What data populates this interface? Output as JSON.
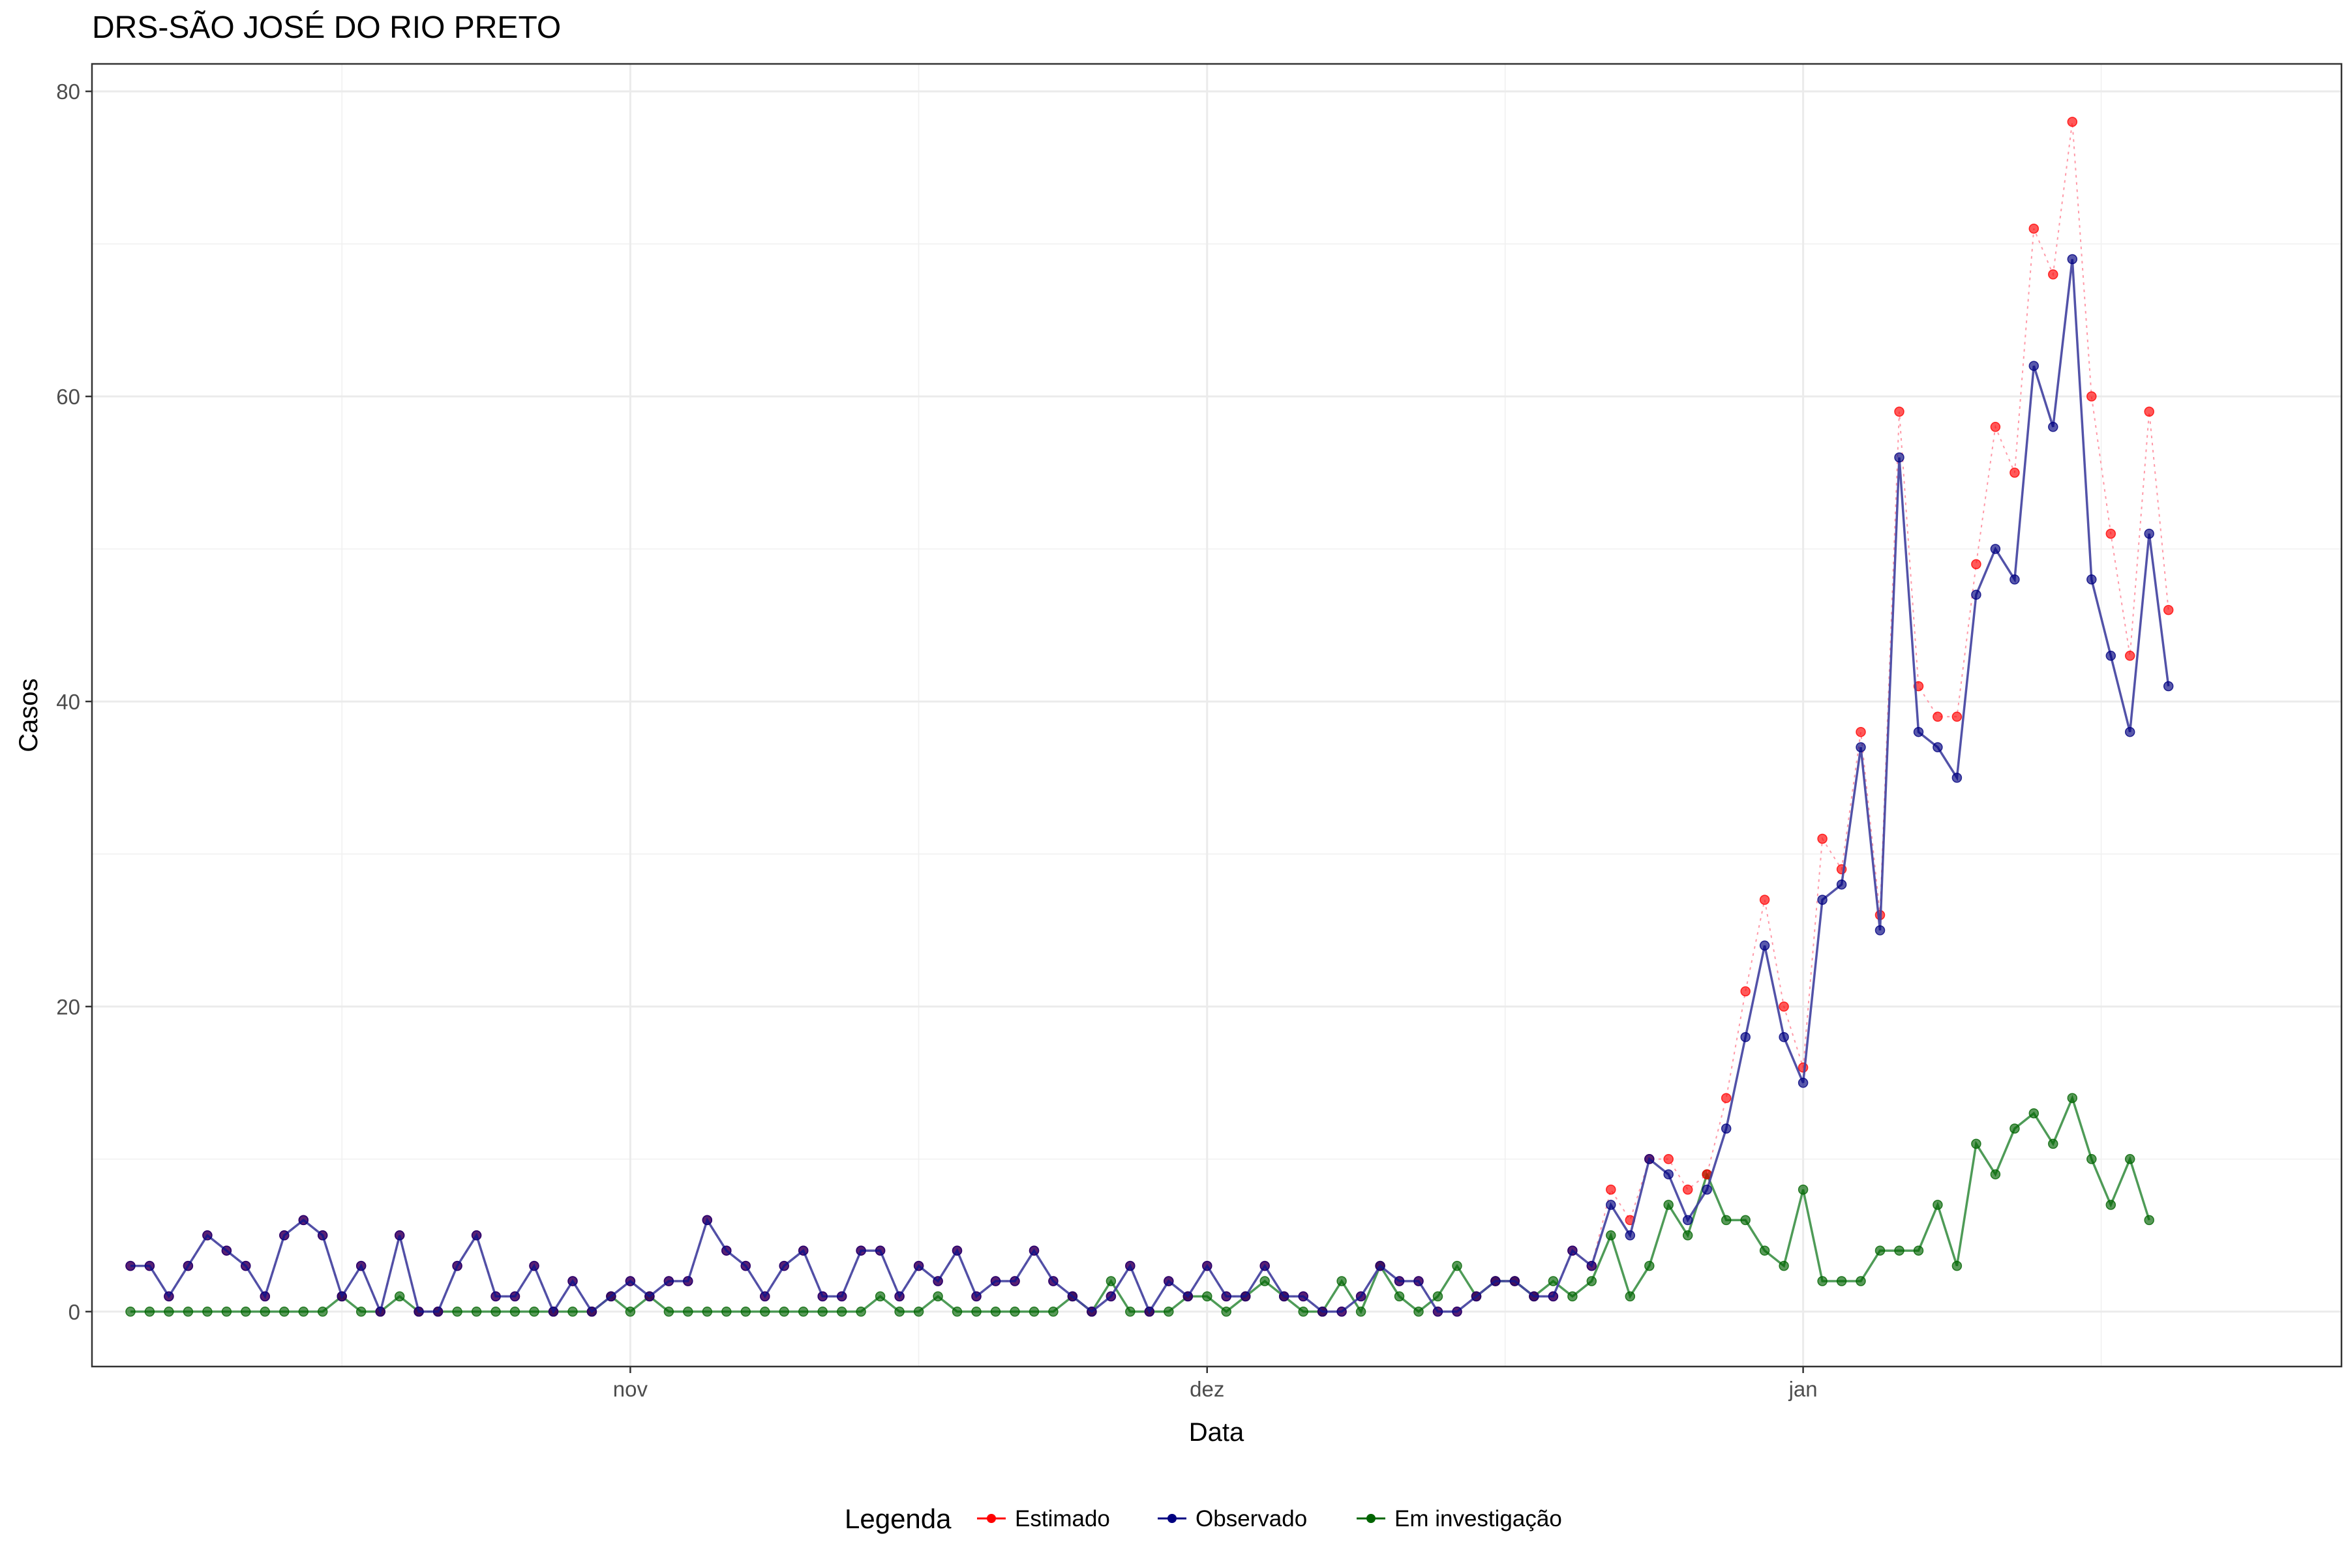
{
  "chart_data": {
    "type": "line",
    "title": "DRS-SÃO JOSÉ DO RIO PRETO",
    "xlabel": "Data",
    "ylabel": "Casos",
    "x_ticks": [
      {
        "date": "2021-11-01",
        "label": "nov"
      },
      {
        "date": "2021-12-01",
        "label": "dez"
      },
      {
        "date": "2022-01-01",
        "label": "jan"
      }
    ],
    "y_ticks": [
      0,
      20,
      40,
      60,
      80
    ],
    "xlim": [
      "2021-10-04",
      "2022-01-29"
    ],
    "ylim": [
      -3.6,
      81.8
    ],
    "grid": true,
    "legend": {
      "title": "Legenda",
      "position": "bottom",
      "entries": [
        "Estimado",
        "Observado",
        "Em investigação"
      ]
    },
    "colors": {
      "Estimado": "#ff0000",
      "Observado": "#000080",
      "Em investigação": "#006400"
    },
    "start_date": "2021-10-06",
    "series": [
      {
        "name": "Estimado",
        "line_style": "dotted",
        "values": [
          3,
          3,
          1,
          3,
          5,
          4,
          3,
          1,
          5,
          6,
          5,
          1,
          3,
          0,
          5,
          0,
          0,
          3,
          5,
          1,
          1,
          3,
          0,
          2,
          0,
          1,
          2,
          1,
          2,
          2,
          6,
          4,
          3,
          1,
          3,
          4,
          1,
          1,
          4,
          4,
          1,
          3,
          2,
          4,
          1,
          2,
          2,
          4,
          2,
          1,
          0,
          1,
          3,
          0,
          2,
          1,
          3,
          1,
          1,
          3,
          1,
          1,
          0,
          0,
          1,
          3,
          2,
          2,
          0,
          0,
          1,
          2,
          2,
          1,
          1,
          4,
          3,
          8,
          6,
          10,
          10,
          8,
          9,
          14,
          21,
          27,
          20,
          16,
          31,
          29,
          38,
          26,
          59,
          41,
          39,
          39,
          49,
          58,
          55,
          71,
          68,
          78,
          60,
          51,
          43,
          59,
          46
        ]
      },
      {
        "name": "Observado",
        "line_style": "solid",
        "values": [
          3,
          3,
          1,
          3,
          5,
          4,
          3,
          1,
          5,
          6,
          5,
          1,
          3,
          0,
          5,
          0,
          0,
          3,
          5,
          1,
          1,
          3,
          0,
          2,
          0,
          1,
          2,
          1,
          2,
          2,
          6,
          4,
          3,
          1,
          3,
          4,
          1,
          1,
          4,
          4,
          1,
          3,
          2,
          4,
          1,
          2,
          2,
          4,
          2,
          1,
          0,
          1,
          3,
          0,
          2,
          1,
          3,
          1,
          1,
          3,
          1,
          1,
          0,
          0,
          1,
          3,
          2,
          2,
          0,
          0,
          1,
          2,
          2,
          1,
          1,
          4,
          3,
          7,
          5,
          10,
          9,
          6,
          8,
          12,
          18,
          24,
          18,
          15,
          27,
          28,
          37,
          25,
          56,
          38,
          37,
          35,
          47,
          50,
          48,
          62,
          58,
          69,
          48,
          43,
          38,
          51,
          41
        ]
      },
      {
        "name": "Em investigação",
        "line_style": "solid",
        "values": [
          0,
          0,
          0,
          0,
          0,
          0,
          0,
          0,
          0,
          0,
          0,
          1,
          0,
          0,
          1,
          0,
          0,
          0,
          0,
          0,
          0,
          0,
          0,
          0,
          0,
          1,
          0,
          1,
          0,
          0,
          0,
          0,
          0,
          0,
          0,
          0,
          0,
          0,
          0,
          1,
          0,
          0,
          1,
          0,
          0,
          0,
          0,
          0,
          0,
          1,
          0,
          2,
          0,
          0,
          0,
          1,
          1,
          0,
          1,
          2,
          1,
          0,
          0,
          2,
          0,
          3,
          1,
          0,
          1,
          3,
          1,
          2,
          2,
          1,
          2,
          1,
          2,
          5,
          1,
          3,
          7,
          5,
          9,
          6,
          6,
          4,
          3,
          8,
          2,
          2,
          2,
          4,
          4,
          4,
          7,
          3,
          11,
          9,
          12,
          13,
          11,
          14,
          10,
          7,
          10,
          6
        ]
      }
    ]
  }
}
